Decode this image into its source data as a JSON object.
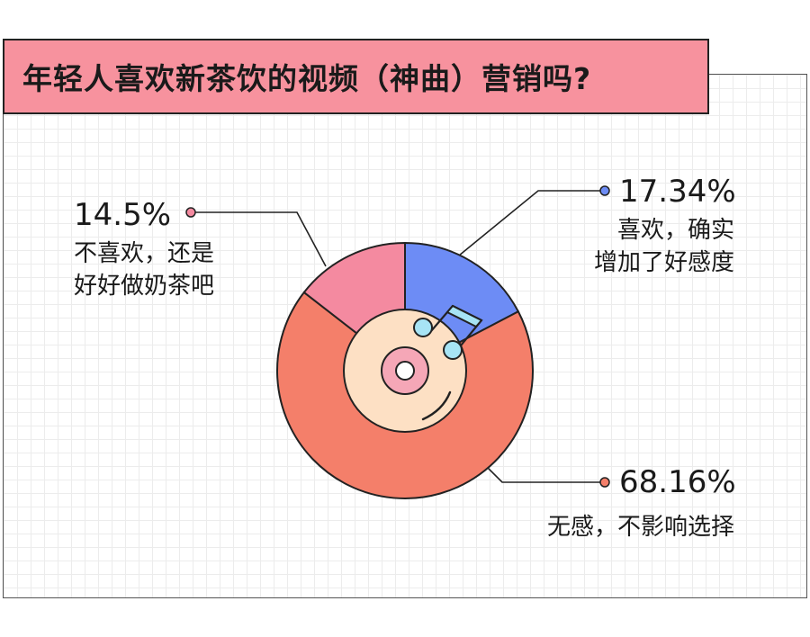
{
  "title": "年轻人喜欢新茶饮的视频（神曲）营销吗?",
  "colors": {
    "title_bg": "#f7929e",
    "love": "#6d8cf5",
    "like_tea": "#f48aa0",
    "neutral": "#f47f6a",
    "inner": "#fde0c4",
    "record": "#f5a7b7",
    "note": "#a7e4f5"
  },
  "chart_data": {
    "type": "pie",
    "donut": true,
    "slices": [
      {
        "pct": "17.34%",
        "value": 17.34,
        "desc_lines": [
          "喜欢，确实",
          "增加了好感度"
        ],
        "color": "#6d8cf5"
      },
      {
        "pct": "68.16%",
        "value": 68.16,
        "desc_lines": [
          "无感，不影响选择"
        ],
        "color": "#f47f6a"
      },
      {
        "pct": "14.5%",
        "value": 14.5,
        "desc_lines": [
          "不喜欢，还是",
          "好好做奶茶吧"
        ],
        "color": "#f48aa0"
      }
    ],
    "center_icon": "music-record-icon"
  }
}
